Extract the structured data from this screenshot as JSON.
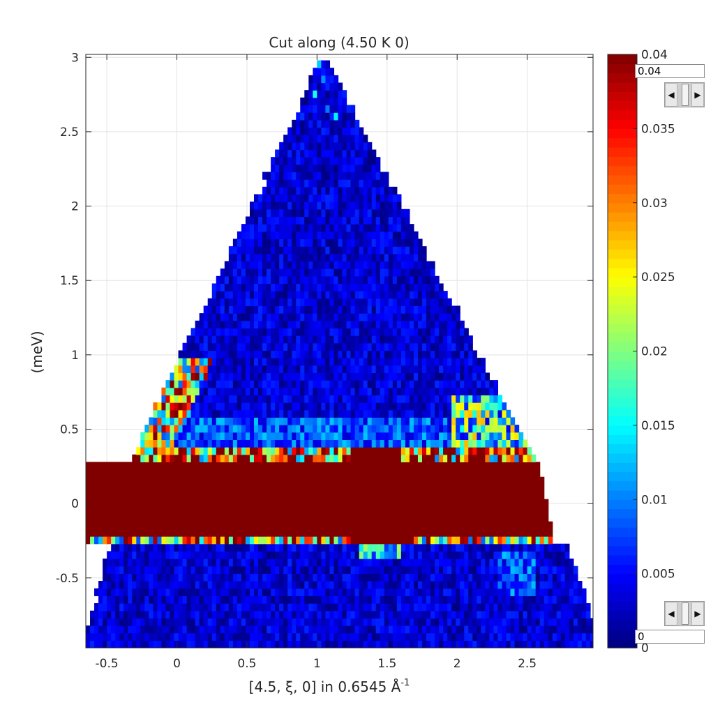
{
  "chart_data": {
    "type": "heatmap",
    "title": "Cut along (4.50 K 0)",
    "xlabel": "[4.5, ξ, 0] in 0.6545 Å",
    "xlabel_superscript": "-1",
    "ylabel": "(meV)",
    "xlim": [
      -0.65,
      2.97
    ],
    "ylim": [
      -0.97,
      3.02
    ],
    "xticks": [
      -0.5,
      0,
      0.5,
      1,
      1.5,
      2,
      2.5
    ],
    "xtick_labels": [
      "-0.5",
      "0",
      "0.5",
      "1",
      "1.5",
      "2",
      "2.5"
    ],
    "yticks": [
      -0.5,
      0,
      0.5,
      1,
      1.5,
      2,
      2.5,
      3
    ],
    "ytick_labels": [
      "-0.5",
      "0",
      "0.5",
      "1",
      "1.5",
      "2",
      "2.5",
      "3"
    ],
    "grid": true,
    "colormap": "jet",
    "clim": [
      0,
      0.04
    ],
    "colorbar_ticks": [
      0,
      0.005,
      0.01,
      0.015,
      0.02,
      0.025,
      0.03,
      0.035,
      0.04
    ],
    "colorbar_tick_labels": [
      "0",
      "0.005",
      "0.01",
      "0.015",
      "0.02",
      "0.025",
      "0.03",
      "0.035",
      "0.04"
    ],
    "coverage": {
      "apex": [
        1.05,
        3.02
      ],
      "upper_left_edge": [
        [
          -0.33,
          0.3
        ],
        [
          1.05,
          3.02
        ]
      ],
      "upper_right_edge": [
        [
          1.05,
          3.02
        ],
        [
          2.55,
          0.3
        ]
      ],
      "left_edge_below": [
        [
          -0.67,
          -0.95
        ],
        [
          -0.47,
          -0.25
        ]
      ],
      "right_edge_below": [
        [
          2.78,
          -0.25
        ],
        [
          2.97,
          -0.78
        ]
      ]
    },
    "features": [
      {
        "label": "elastic line",
        "energy_range": [
          -0.22,
          0.3
        ],
        "intensity": "saturated (>= 0.04)",
        "x_range": [
          -0.42,
          2.7
        ]
      },
      {
        "label": "bright band edges",
        "energy": [
          0.32,
          -0.24
        ],
        "intensity": "0.01 - 0.04"
      },
      {
        "label": "inelastic background",
        "energy_range": [
          0.35,
          3.0
        ],
        "intensity": "0.0 - 0.008"
      },
      {
        "label": "low-Q hot spots",
        "x_range": [
          -0.2,
          0.2
        ],
        "energy_range": [
          0.4,
          0.95
        ],
        "intensity": "0.02 - 0.04"
      },
      {
        "label": "high-Q bright patch",
        "x_range": [
          1.95,
          2.45
        ],
        "energy_range": [
          0.45,
          0.72
        ],
        "intensity": "0.012 - 0.03"
      }
    ]
  },
  "colorbar_controls": {
    "max_value": "0.04",
    "min_value": "0",
    "left_arrow": "◀",
    "right_arrow": "▶"
  }
}
